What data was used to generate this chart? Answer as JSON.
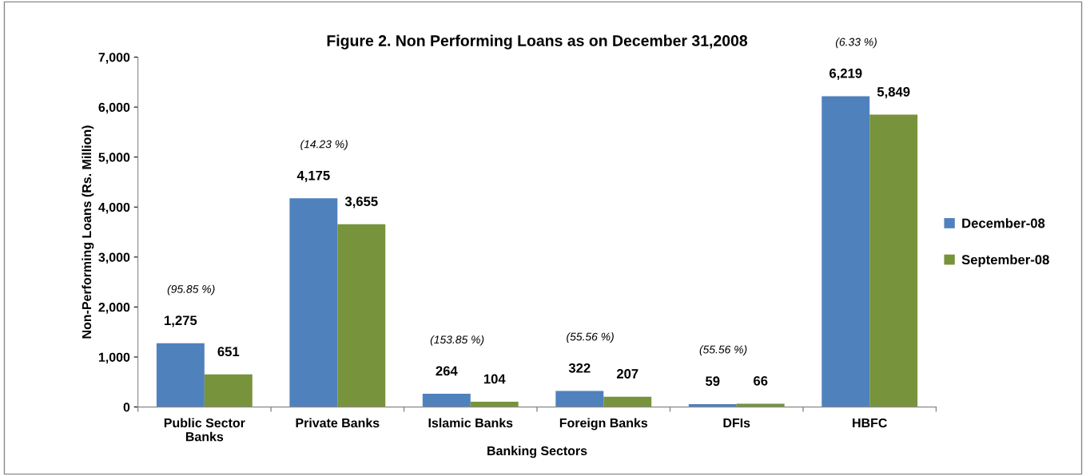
{
  "chart_data": {
    "type": "bar",
    "title": "Figure 2. Non Performing Loans as on December 31,2008",
    "xlabel": "Banking Sectors",
    "ylabel": "Non-Performing Loans (Rs. Million)",
    "categories": [
      "Public Sector\nBanks",
      "Private Banks",
      "Islamic Banks",
      "Foreign Banks",
      "DFIs",
      "HBFC"
    ],
    "series": [
      {
        "name": "December-08",
        "color": "#4f81bd",
        "values": [
          1275,
          4175,
          264,
          322,
          59,
          6219
        ],
        "value_labels": [
          "1,275",
          "4,175",
          "264",
          "322",
          "59",
          "6,219"
        ]
      },
      {
        "name": "September-08",
        "color": "#77933c",
        "values": [
          651,
          3655,
          104,
          207,
          66,
          5849
        ],
        "value_labels": [
          "651",
          "3,655",
          "104",
          "207",
          "66",
          "5,849"
        ]
      }
    ],
    "ylim": [
      0,
      7000
    ],
    "yticks": [
      {
        "value": 0,
        "label": "0"
      },
      {
        "value": 1000,
        "label": "1,000"
      },
      {
        "value": 2000,
        "label": "2,000"
      },
      {
        "value": 3000,
        "label": "3,000"
      },
      {
        "value": 4000,
        "label": "4,000"
      },
      {
        "value": 5000,
        "label": "5,000"
      },
      {
        "value": 6000,
        "label": "6,000"
      },
      {
        "value": 7000,
        "label": "7,000"
      }
    ],
    "grid": false,
    "legend": "right",
    "annotations": [
      "(95.85 %)",
      "(14.23 %)",
      "(153.85 %)",
      "(55.56 %)",
      "(55.56 %)",
      "(6.33 %)"
    ]
  }
}
